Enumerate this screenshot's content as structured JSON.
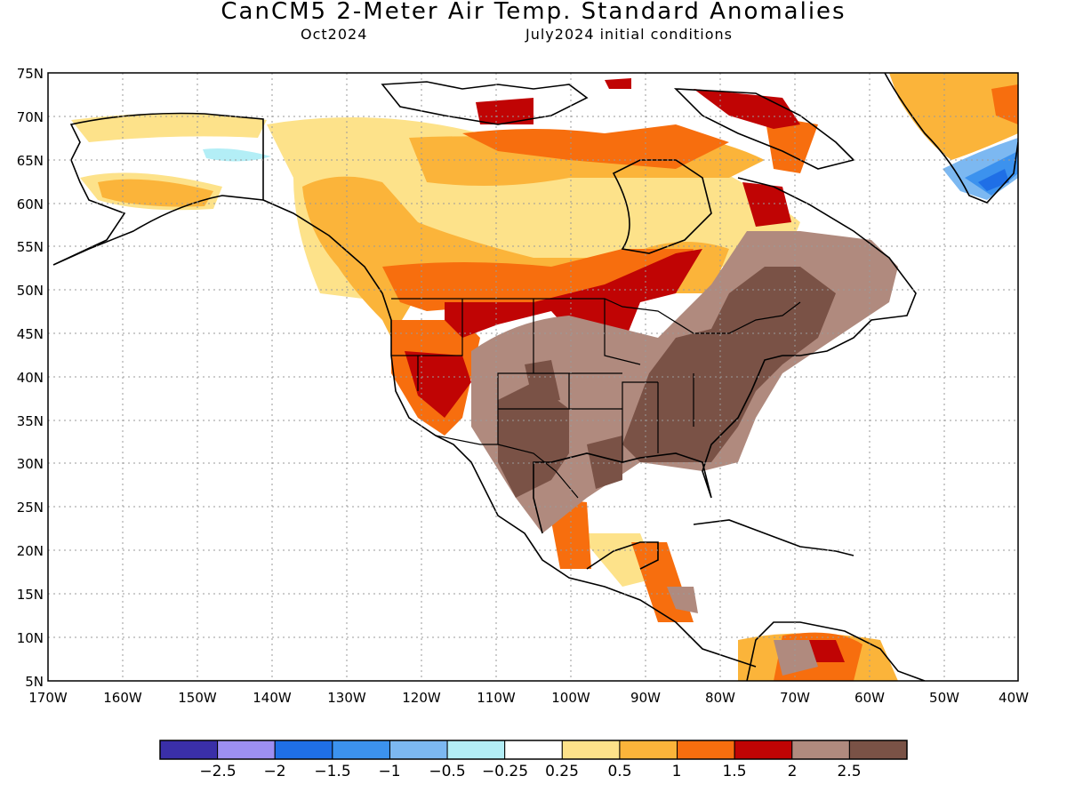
{
  "header": {
    "title": "CanCM5 2-Meter Air Temp. Standard Anomalies",
    "valid_month": "Oct2024",
    "init": "July2024 initial conditions"
  },
  "axes": {
    "lat_labels": [
      "75N",
      "70N",
      "65N",
      "60N",
      "55N",
      "50N",
      "45N",
      "40N",
      "35N",
      "30N",
      "25N",
      "20N",
      "15N",
      "10N",
      "5N"
    ],
    "lon_labels": [
      "170W",
      "160W",
      "150W",
      "140W",
      "130W",
      "120W",
      "110W",
      "100W",
      "90W",
      "80W",
      "70W",
      "60W",
      "50W",
      "40W"
    ],
    "lat_range": [
      5,
      75
    ],
    "lon_range": [
      -170,
      -40
    ],
    "grid": "dotted"
  },
  "colorbar": {
    "colors": [
      "#3a2fa8",
      "#9d8ff2",
      "#1f6fe6",
      "#3c92ee",
      "#7cb8f1",
      "#b3eef6",
      "#ffffff",
      "#fde28a",
      "#fbb43a",
      "#f76e0e",
      "#c00404",
      "#b08a7e",
      "#7a5246"
    ],
    "labels": [
      "−2.5",
      "−2",
      "−1.5",
      "−1",
      "−0.5",
      "−0.25",
      "0.25",
      "0.5",
      "1",
      "1.5",
      "2",
      "2.5"
    ]
  }
}
